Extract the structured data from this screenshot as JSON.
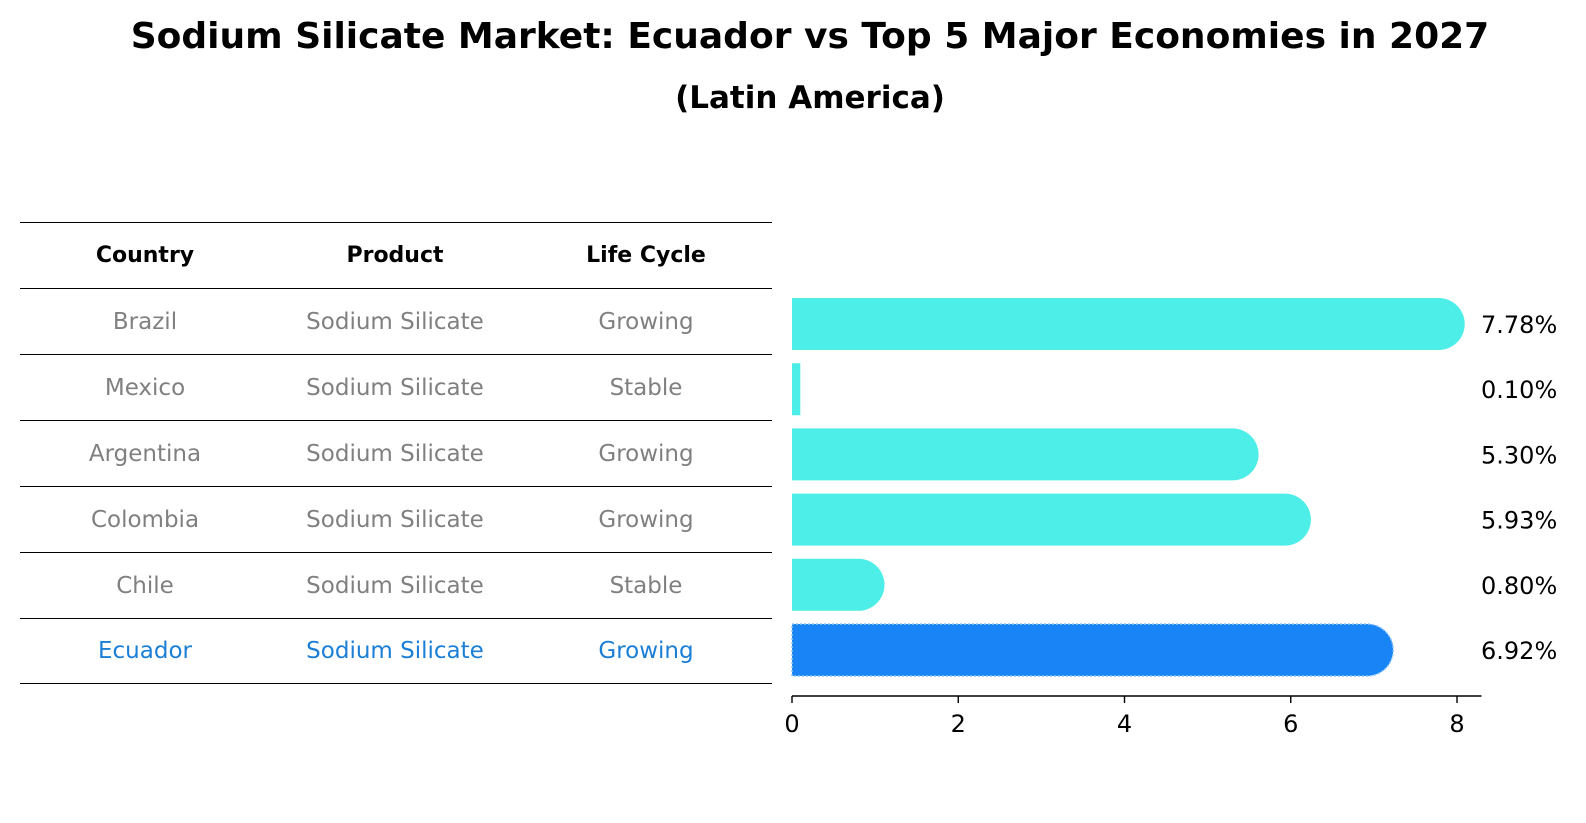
{
  "title": "Sodium Silicate Market: Ecuador vs Top 5 Major Economies in 2027",
  "subtitle": "(Latin America)",
  "table": {
    "headers": [
      "Country",
      "Product",
      "Life Cycle"
    ],
    "rows": [
      {
        "country": "Brazil",
        "product": "Sodium Silicate",
        "life_cycle": "Growing"
      },
      {
        "country": "Mexico",
        "product": "Sodium Silicate",
        "life_cycle": "Stable"
      },
      {
        "country": "Argentina",
        "product": "Sodium Silicate",
        "life_cycle": "Growing"
      },
      {
        "country": "Colombia",
        "product": "Sodium Silicate",
        "life_cycle": "Growing"
      },
      {
        "country": "Chile",
        "product": "Sodium Silicate",
        "life_cycle": "Stable"
      },
      {
        "country": "Ecuador",
        "product": "Sodium Silicate",
        "life_cycle": "Growing"
      }
    ],
    "highlight_row": "Ecuador"
  },
  "colors": {
    "bar": "#4deee8",
    "highlight_bar": "#1884f5",
    "highlight_text": "#1c7fd6",
    "muted_text": "#808080"
  },
  "chart_data": {
    "type": "bar",
    "orientation": "horizontal",
    "categories": [
      "Brazil",
      "Mexico",
      "Argentina",
      "Colombia",
      "Chile",
      "Ecuador"
    ],
    "values": [
      7.78,
      0.1,
      5.3,
      5.93,
      0.8,
      6.92
    ],
    "value_labels": [
      "7.78%",
      "0.10%",
      "5.30%",
      "5.93%",
      "0.80%",
      "6.92%"
    ],
    "highlight": "Ecuador",
    "xlim": [
      0,
      8.15
    ],
    "xticks": [
      0,
      2,
      4,
      6,
      8
    ],
    "xtick_labels": [
      "0",
      "2",
      "4",
      "6",
      "8"
    ],
    "grid": false
  }
}
